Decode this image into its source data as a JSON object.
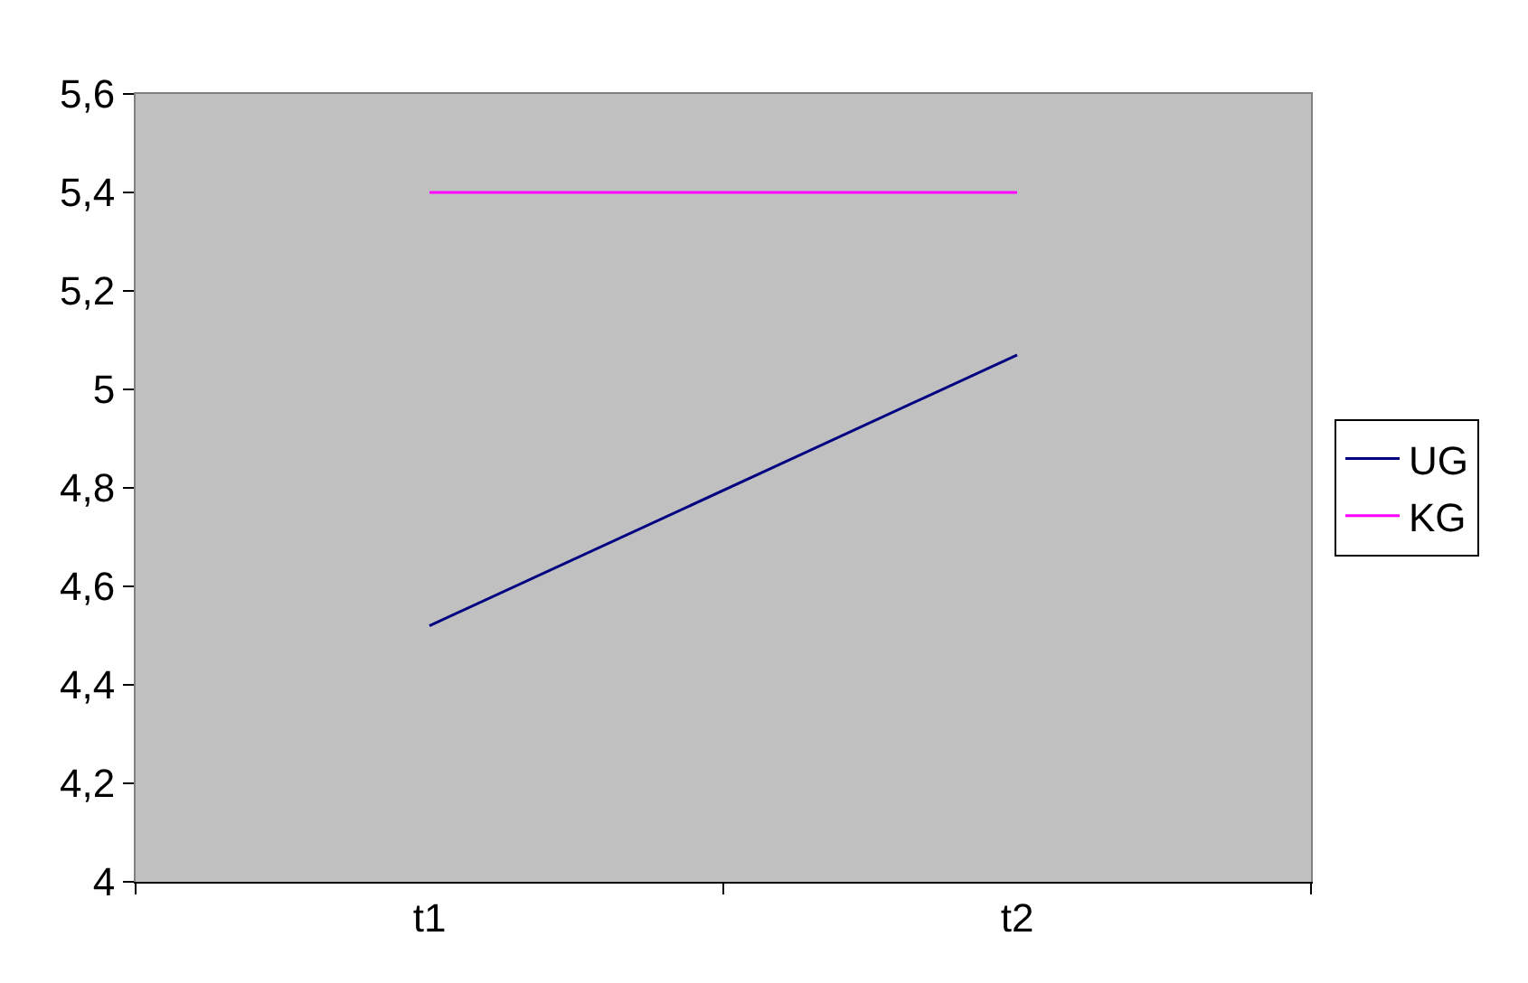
{
  "chart_data": {
    "type": "line",
    "categories": [
      "t1",
      "t2"
    ],
    "series": [
      {
        "name": "UG",
        "color": "#000080",
        "values": [
          4.52,
          5.07
        ]
      },
      {
        "name": "KG",
        "color": "#ff00ff",
        "values": [
          5.4,
          5.4
        ]
      }
    ],
    "ylim": [
      4,
      5.6
    ],
    "yticks": [
      {
        "value": 4,
        "label": "4"
      },
      {
        "value": 4.2,
        "label": "4,2"
      },
      {
        "value": 4.4,
        "label": "4,4"
      },
      {
        "value": 4.6,
        "label": "4,6"
      },
      {
        "value": 4.8,
        "label": "4,8"
      },
      {
        "value": 5,
        "label": "5"
      },
      {
        "value": 5.2,
        "label": "5,2"
      },
      {
        "value": 5.4,
        "label": "5,4"
      },
      {
        "value": 5.6,
        "label": "5,6"
      }
    ],
    "grid": false,
    "legend": "right",
    "marker": "none",
    "line_style": "solid"
  }
}
